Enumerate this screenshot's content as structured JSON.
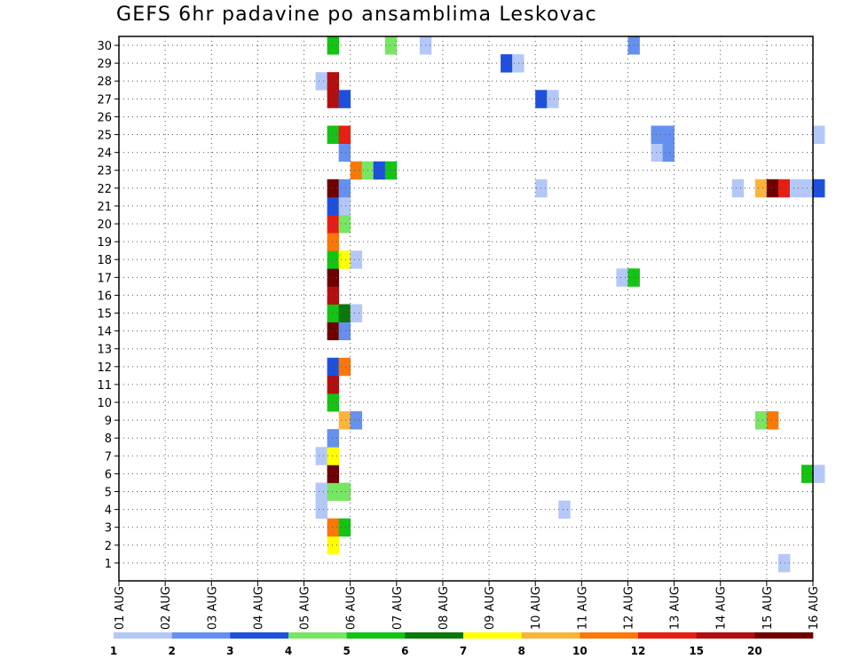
{
  "chart_data": {
    "type": "heatmap",
    "title": "GEFS 6hr padavine po ansamblima Leskovac",
    "x_tick_labels": [
      "01 AUG",
      "02 AUG",
      "03 AUG",
      "04 AUG",
      "05 AUG",
      "06 AUG",
      "07 AUG",
      "08 AUG",
      "09 AUG",
      "10 AUG",
      "11 AUG",
      "12 AUG",
      "13 AUG",
      "14 AUG",
      "15 AUG",
      "16 AUG"
    ],
    "y_tick_labels": [
      "1",
      "2",
      "3",
      "4",
      "5",
      "6",
      "7",
      "8",
      "9",
      "10",
      "11",
      "12",
      "13",
      "14",
      "15",
      "16",
      "17",
      "18",
      "19",
      "20",
      "21",
      "22",
      "23",
      "24",
      "25",
      "26",
      "27",
      "28",
      "29",
      "30"
    ],
    "x_range": [
      "01 AUG 00Z",
      "16 AUG 00Z"
    ],
    "y_range": [
      0,
      30
    ],
    "x_unit": "6-hour step (index 0 = 01 AUG 00Z)",
    "grid": "dotted",
    "colorbar": {
      "colors": [
        "#b4c8f8",
        "#6690f0",
        "#1e50dc",
        "#78e664",
        "#14c314",
        "#0a780a",
        "#ffff00",
        "#fab43c",
        "#fa780a",
        "#e61e14",
        "#b40f0f",
        "#6e0000"
      ],
      "tick_labels": [
        "1",
        "2",
        "3",
        "4",
        "5",
        "6",
        "7",
        "8",
        "10",
        "12",
        "15",
        "20"
      ]
    },
    "cells": [
      {
        "x": 57,
        "y": 0,
        "c": 0
      },
      {
        "x": 18,
        "y": 1,
        "c": 6
      },
      {
        "x": 18,
        "y": 2,
        "c": 8
      },
      {
        "x": 19,
        "y": 2,
        "c": 4
      },
      {
        "x": 17,
        "y": 3,
        "c": 0
      },
      {
        "x": 38,
        "y": 3,
        "c": 0
      },
      {
        "x": 17,
        "y": 4,
        "c": 0
      },
      {
        "x": 18,
        "y": 4,
        "c": 3
      },
      {
        "x": 19,
        "y": 4,
        "c": 3
      },
      {
        "x": 18,
        "y": 5,
        "c": 11
      },
      {
        "x": 59,
        "y": 5,
        "c": 4
      },
      {
        "x": 60,
        "y": 5,
        "c": 0
      },
      {
        "x": 17,
        "y": 6,
        "c": 0
      },
      {
        "x": 18,
        "y": 6,
        "c": 6
      },
      {
        "x": 18,
        "y": 7,
        "c": 1
      },
      {
        "x": 19,
        "y": 8,
        "c": 7
      },
      {
        "x": 20,
        "y": 8,
        "c": 1
      },
      {
        "x": 55,
        "y": 8,
        "c": 3
      },
      {
        "x": 56,
        "y": 8,
        "c": 8
      },
      {
        "x": 18,
        "y": 9,
        "c": 4
      },
      {
        "x": 18,
        "y": 10,
        "c": 10
      },
      {
        "x": 18,
        "y": 11,
        "c": 2
      },
      {
        "x": 19,
        "y": 11,
        "c": 8
      },
      {
        "x": 18,
        "y": 13,
        "c": 11
      },
      {
        "x": 19,
        "y": 13,
        "c": 1
      },
      {
        "x": 18,
        "y": 14,
        "c": 4
      },
      {
        "x": 19,
        "y": 14,
        "c": 5
      },
      {
        "x": 20,
        "y": 14,
        "c": 0
      },
      {
        "x": 18,
        "y": 15,
        "c": 10
      },
      {
        "x": 18,
        "y": 16,
        "c": 11
      },
      {
        "x": 43,
        "y": 16,
        "c": 0
      },
      {
        "x": 44,
        "y": 16,
        "c": 4
      },
      {
        "x": 18,
        "y": 17,
        "c": 4
      },
      {
        "x": 19,
        "y": 17,
        "c": 6
      },
      {
        "x": 20,
        "y": 17,
        "c": 0
      },
      {
        "x": 18,
        "y": 18,
        "c": 8
      },
      {
        "x": 18,
        "y": 19,
        "c": 9
      },
      {
        "x": 19,
        "y": 19,
        "c": 3
      },
      {
        "x": 18,
        "y": 20,
        "c": 2
      },
      {
        "x": 19,
        "y": 20,
        "c": 0
      },
      {
        "x": 18,
        "y": 21,
        "c": 11
      },
      {
        "x": 19,
        "y": 21,
        "c": 1
      },
      {
        "x": 36,
        "y": 21,
        "c": 0
      },
      {
        "x": 53,
        "y": 21,
        "c": 0
      },
      {
        "x": 55,
        "y": 21,
        "c": 7
      },
      {
        "x": 56,
        "y": 21,
        "c": 11
      },
      {
        "x": 57,
        "y": 21,
        "c": 9
      },
      {
        "x": 58,
        "y": 21,
        "c": 0
      },
      {
        "x": 59,
        "y": 21,
        "c": 0
      },
      {
        "x": 60,
        "y": 21,
        "c": 2
      },
      {
        "x": 20,
        "y": 22,
        "c": 8
      },
      {
        "x": 21,
        "y": 22,
        "c": 3
      },
      {
        "x": 22,
        "y": 22,
        "c": 2
      },
      {
        "x": 23,
        "y": 22,
        "c": 4
      },
      {
        "x": 19,
        "y": 23,
        "c": 1
      },
      {
        "x": 46,
        "y": 23,
        "c": 0
      },
      {
        "x": 47,
        "y": 23,
        "c": 1
      },
      {
        "x": 18,
        "y": 24,
        "c": 4
      },
      {
        "x": 19,
        "y": 24,
        "c": 9
      },
      {
        "x": 46,
        "y": 24,
        "c": 1
      },
      {
        "x": 47,
        "y": 24,
        "c": 1
      },
      {
        "x": 60,
        "y": 24,
        "c": 0
      },
      {
        "x": 18,
        "y": 26,
        "c": 10
      },
      {
        "x": 19,
        "y": 26,
        "c": 2
      },
      {
        "x": 36,
        "y": 26,
        "c": 2
      },
      {
        "x": 37,
        "y": 26,
        "c": 0
      },
      {
        "x": 17,
        "y": 27,
        "c": 0
      },
      {
        "x": 18,
        "y": 27,
        "c": 10
      },
      {
        "x": 33,
        "y": 28,
        "c": 2
      },
      {
        "x": 34,
        "y": 28,
        "c": 0
      },
      {
        "x": 18,
        "y": 29,
        "c": 4
      },
      {
        "x": 23,
        "y": 29,
        "c": 3
      },
      {
        "x": 26,
        "y": 29,
        "c": 0
      },
      {
        "x": 44,
        "y": 29,
        "c": 1
      }
    ]
  }
}
